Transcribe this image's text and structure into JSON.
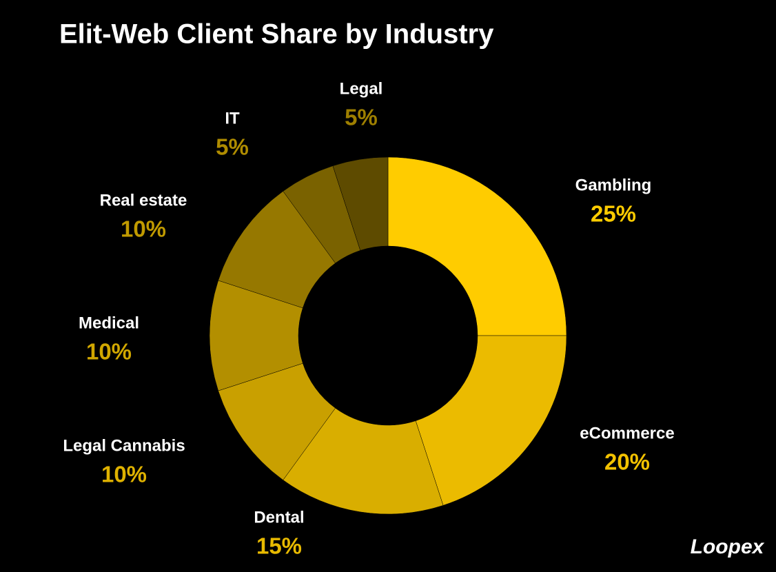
{
  "chart_data": {
    "type": "donut",
    "title": "Elit-Web Client Share by Industry",
    "categories": [
      "Gambling",
      "eCommerce",
      "Dental",
      "Legal Cannabis",
      "Medical",
      "Real estate",
      "IT",
      "Legal"
    ],
    "values": [
      25,
      20,
      15,
      10,
      10,
      10,
      5,
      5
    ],
    "value_labels": [
      "25%",
      "20%",
      "15%",
      "10%",
      "10%",
      "10%",
      "5%",
      "5%"
    ],
    "colors": [
      "#ffcc00",
      "#ebbb00",
      "#d9ae00",
      "#c9a000",
      "#b38f00",
      "#967800",
      "#7a6200",
      "#5e4b00"
    ]
  },
  "logo": "Loopex"
}
